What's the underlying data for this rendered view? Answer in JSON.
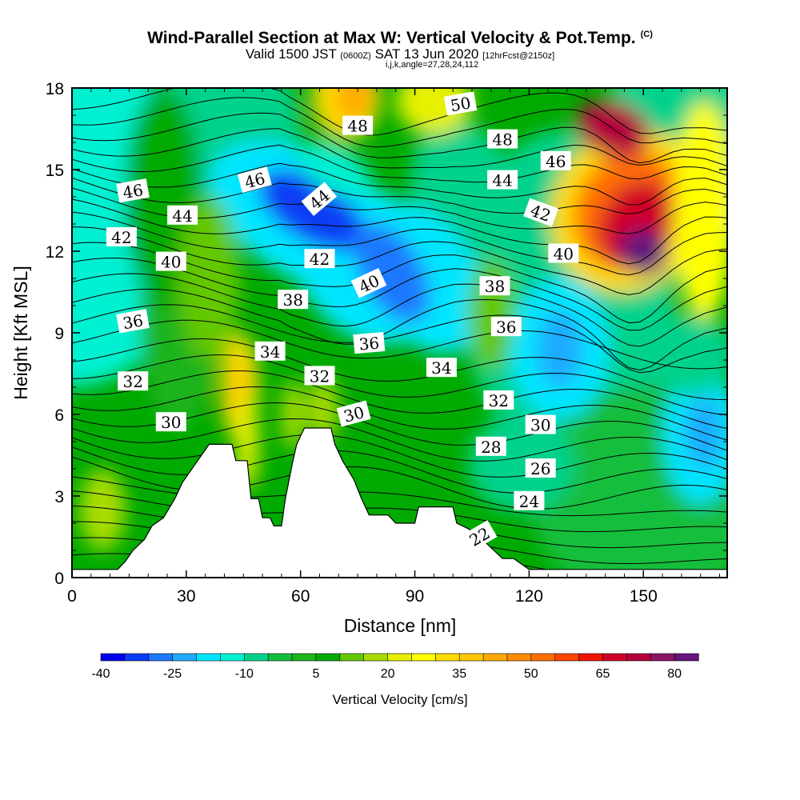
{
  "header": {
    "title": "Wind-Parallel Section at Max W: Vertical Velocity & Pot.Temp.",
    "title_mark": "(C)",
    "valid_prefix": "Valid 1500 JST",
    "valid_utc": "(0600Z)",
    "valid_date": "SAT 13 Jun 2020",
    "forecast": "[12hrFcst@2150z]",
    "indices": "i,j,k,angle=27,28,24,112"
  },
  "chart_data": {
    "type": "contour",
    "xlabel": "Distance [nm]",
    "ylabel": "Height [Kft MSL]",
    "xlim": [
      0,
      172
    ],
    "ylim": [
      0,
      18
    ],
    "x_ticks": [
      0,
      30,
      60,
      90,
      120,
      150
    ],
    "y_ticks": [
      0,
      3,
      6,
      9,
      12,
      15,
      18
    ],
    "colorbar": {
      "title": "Vertical Velocity [cm/s]",
      "labels": [
        "-40",
        "-25",
        "-10",
        "5",
        "20",
        "35",
        "50",
        "65",
        "80"
      ],
      "levels": [
        -40,
        -35,
        -30,
        -25,
        -20,
        -15,
        -10,
        -5,
        0,
        5,
        10,
        15,
        20,
        25,
        30,
        35,
        40,
        45,
        50,
        55,
        60,
        65,
        70,
        75,
        80,
        85
      ],
      "colors": [
        "#0000ee",
        "#0a3cf5",
        "#1e78ff",
        "#1eaaff",
        "#00e6ff",
        "#00f0d2",
        "#00d28c",
        "#14be3c",
        "#1eb41e",
        "#00aa00",
        "#64c800",
        "#aadc00",
        "#e6f000",
        "#ffff00",
        "#ffdc00",
        "#ffc800",
        "#ffaa00",
        "#ff8c00",
        "#ff6e00",
        "#ff4600",
        "#f01400",
        "#d20028",
        "#b4003c",
        "#8c1464",
        "#64147d"
      ]
    },
    "terrain": [
      [
        0,
        0.3
      ],
      [
        12,
        0.3
      ],
      [
        14,
        0.6
      ],
      [
        16,
        1.0
      ],
      [
        19,
        1.4
      ],
      [
        21,
        1.9
      ],
      [
        24,
        2.2
      ],
      [
        27,
        2.9
      ],
      [
        29,
        3.5
      ],
      [
        33,
        4.3
      ],
      [
        36,
        4.9
      ],
      [
        42,
        4.9
      ],
      [
        43,
        4.3
      ],
      [
        46,
        4.3
      ],
      [
        47,
        2.9
      ],
      [
        49,
        2.9
      ],
      [
        50,
        2.2
      ],
      [
        52,
        2.2
      ],
      [
        53,
        1.9
      ],
      [
        55,
        1.9
      ],
      [
        56,
        2.9
      ],
      [
        58,
        4.3
      ],
      [
        59,
        4.9
      ],
      [
        61,
        5.5
      ],
      [
        68,
        5.5
      ],
      [
        69,
        4.9
      ],
      [
        71,
        4.3
      ],
      [
        74,
        3.6
      ],
      [
        76,
        2.9
      ],
      [
        78,
        2.3
      ],
      [
        83,
        2.3
      ],
      [
        85,
        2.0
      ],
      [
        90,
        2.0
      ],
      [
        91,
        2.6
      ],
      [
        100,
        2.6
      ],
      [
        101,
        2.0
      ],
      [
        104,
        1.8
      ],
      [
        107,
        1.5
      ],
      [
        110,
        1.1
      ],
      [
        113,
        0.7
      ],
      [
        116,
        0.7
      ],
      [
        120,
        0.3
      ],
      [
        172,
        0.3
      ]
    ],
    "w_field_peaks": [
      {
        "x": 150,
        "y": 12,
        "w": 85
      },
      {
        "x": 144,
        "y": 16,
        "w": 70
      },
      {
        "x": 62,
        "y": 13.5,
        "w": -40
      },
      {
        "x": 88,
        "y": 11,
        "w": -30
      },
      {
        "x": 128,
        "y": 8.5,
        "w": -25
      },
      {
        "x": 166,
        "y": 5.3,
        "w": -25
      },
      {
        "x": 44,
        "y": 7,
        "w": 35
      },
      {
        "x": 72,
        "y": 17.5,
        "w": 35
      },
      {
        "x": 96,
        "y": 17.5,
        "w": 25
      }
    ],
    "theta_contours": [
      22,
      24,
      26,
      28,
      30,
      32,
      34,
      36,
      38,
      40,
      42,
      44,
      46,
      48,
      50
    ],
    "theta_labels": [
      {
        "text": "22",
        "x": 107,
        "y": 1.5,
        "rot": -30
      },
      {
        "text": "24",
        "x": 120,
        "y": 2.8,
        "rot": 0
      },
      {
        "text": "26",
        "x": 123,
        "y": 4.0,
        "rot": 0
      },
      {
        "text": "28",
        "x": 110,
        "y": 4.8,
        "rot": 0
      },
      {
        "text": "30",
        "x": 26,
        "y": 5.7,
        "rot": 0
      },
      {
        "text": "30",
        "x": 74,
        "y": 6.0,
        "rot": -15
      },
      {
        "text": "30",
        "x": 123,
        "y": 5.6,
        "rot": 0
      },
      {
        "text": "32",
        "x": 16,
        "y": 7.2,
        "rot": 0
      },
      {
        "text": "32",
        "x": 65,
        "y": 7.4,
        "rot": 0
      },
      {
        "text": "32",
        "x": 112,
        "y": 6.5,
        "rot": 0
      },
      {
        "text": "34",
        "x": 52,
        "y": 8.3,
        "rot": 0
      },
      {
        "text": "34",
        "x": 97,
        "y": 7.7,
        "rot": 0
      },
      {
        "text": "36",
        "x": 16,
        "y": 9.4,
        "rot": -10
      },
      {
        "text": "36",
        "x": 78,
        "y": 8.6,
        "rot": -5
      },
      {
        "text": "36",
        "x": 114,
        "y": 9.2,
        "rot": 0
      },
      {
        "text": "38",
        "x": 58,
        "y": 10.2,
        "rot": 0
      },
      {
        "text": "38",
        "x": 111,
        "y": 10.7,
        "rot": 0
      },
      {
        "text": "40",
        "x": 26,
        "y": 11.6,
        "rot": 0
      },
      {
        "text": "40",
        "x": 78,
        "y": 10.8,
        "rot": -25
      },
      {
        "text": "40",
        "x": 129,
        "y": 11.9,
        "rot": 0
      },
      {
        "text": "42",
        "x": 13,
        "y": 12.5,
        "rot": 0
      },
      {
        "text": "42",
        "x": 65,
        "y": 11.7,
        "rot": 0
      },
      {
        "text": "42",
        "x": 123,
        "y": 13.4,
        "rot": 20
      },
      {
        "text": "44",
        "x": 29,
        "y": 13.3,
        "rot": 0
      },
      {
        "text": "44",
        "x": 65,
        "y": 13.9,
        "rot": -40
      },
      {
        "text": "44",
        "x": 113,
        "y": 14.6,
        "rot": 0
      },
      {
        "text": "46",
        "x": 16,
        "y": 14.2,
        "rot": -10
      },
      {
        "text": "46",
        "x": 48,
        "y": 14.6,
        "rot": -15
      },
      {
        "text": "46",
        "x": 127,
        "y": 15.3,
        "rot": 0
      },
      {
        "text": "48",
        "x": 75,
        "y": 16.6,
        "rot": 0
      },
      {
        "text": "48",
        "x": 113,
        "y": 16.1,
        "rot": 0
      },
      {
        "text": "50",
        "x": 102,
        "y": 17.4,
        "rot": -10
      }
    ]
  }
}
